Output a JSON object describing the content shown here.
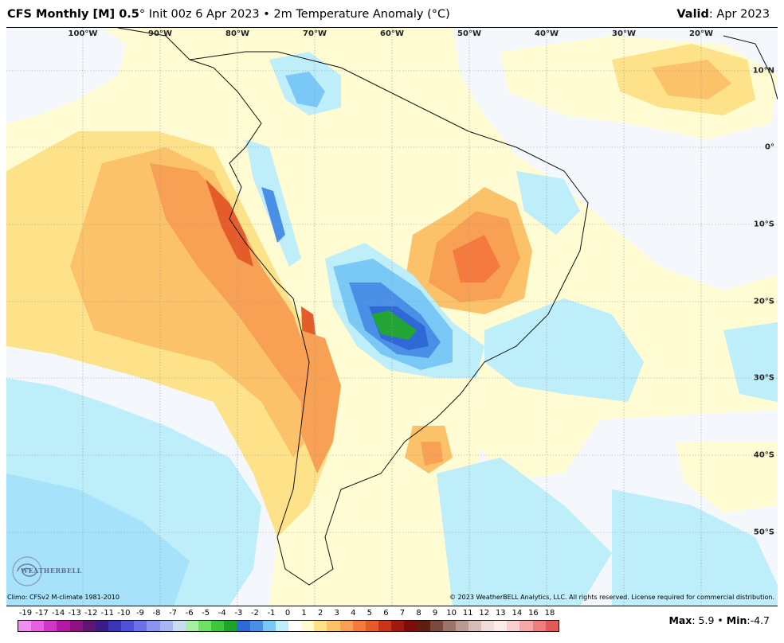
{
  "header": {
    "model": "CFS Monthly [M] 0.5",
    "degree_mark": "°",
    "init": " Init 00z 6 Apr 2023",
    "separator": " • ",
    "field": "2m Temperature Anomaly (",
    "unit": "°C",
    "close": ")",
    "valid_label": "Valid",
    "valid_value": ": Apr 2023"
  },
  "map": {
    "lon_labels": [
      "100°W",
      "90°W",
      "80°W",
      "70°W",
      "60°W",
      "50°W",
      "40°W",
      "30°W",
      "20°W"
    ],
    "lat_labels": [
      "10°N",
      "0°",
      "10°S",
      "20°S",
      "30°S",
      "40°S",
      "50°S"
    ],
    "colors": {
      "ocean_base": "#fffbd2",
      "near_zero_light": "#f4f8fc",
      "cool_light": "#bdeefa",
      "cool": "#a6e3fa",
      "cool_mid": "#7ac8f5",
      "cold": "#4a8fe6",
      "cold_deep": "#2f69d6",
      "very_cold": "#22a534",
      "warm_light": "#fde28a",
      "warm": "#fbc26a",
      "warm_mid": "#f8a155",
      "hot": "#f47a40",
      "hotter": "#e55c2b",
      "land_outline": "#111111",
      "grid": "#9a9a9a"
    }
  },
  "footer": {
    "climo": "Climo: CFSv2 M-climate 1981-2010",
    "copyright": "© 2023 WeatherBELL Analytics, LLC. All rights reserved. License required for commercial distribution."
  },
  "legend": {
    "labels": [
      "-19",
      "-17",
      "-14",
      "-13",
      "-12",
      "-11",
      "-10",
      "-9",
      "-8",
      "-7",
      "-6",
      "-5",
      "-4",
      "-3",
      "-2",
      "-1",
      "0",
      "1",
      "2",
      "3",
      "4",
      "5",
      "6",
      "7",
      "8",
      "9",
      "10",
      "11",
      "12",
      "13",
      "14",
      "16",
      "18"
    ],
    "colors": [
      "#f28ef0",
      "#e85ee0",
      "#d236c6",
      "#b21aa4",
      "#8e1282",
      "#5e1670",
      "#3b1b8a",
      "#3c34b4",
      "#4f52d6",
      "#6a72e6",
      "#8c94ee",
      "#a8b6f2",
      "#c9dcf2",
      "#a6f0a6",
      "#6ee066",
      "#3cc83c",
      "#1fa32a",
      "#2f69d6",
      "#4a8fe6",
      "#7ac8f5",
      "#bdeefa",
      "#ffffff",
      "#fffbd2",
      "#fde28a",
      "#fbc26a",
      "#f8a155",
      "#f47a40",
      "#e55c2b",
      "#c8341c",
      "#a01a14",
      "#7c0d0d",
      "#5e1e10",
      "#7a4a3c",
      "#9c7468",
      "#b99a92",
      "#d5bcb6",
      "#eedcd8",
      "#fbecea",
      "#f8d0d0",
      "#f4a8a8",
      "#ee7e7e",
      "#e45858"
    ]
  },
  "maxmin": {
    "max_label": "Max",
    "max_value": ": 5.9 • ",
    "min_label": "Min",
    "min_value": ":-4.7"
  },
  "logo": {
    "text": "WEATHERBELL"
  }
}
